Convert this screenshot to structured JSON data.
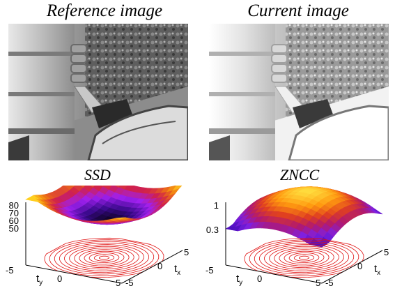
{
  "panels": {
    "reference": {
      "title": "Reference image"
    },
    "current": {
      "title": "Current image"
    }
  },
  "plots": {
    "ssd": {
      "title": "SSD",
      "z_ticks": [
        "80",
        "70",
        "60",
        "50"
      ],
      "x_ticks": [
        "-5",
        "0",
        "5"
      ],
      "y_ticks": [
        "5",
        "0",
        "-5"
      ],
      "x_label": "t",
      "x_label_sub": "y",
      "y_label": "t",
      "y_label_sub": "x",
      "colors": [
        "#000000",
        "#3a0a8c",
        "#a020f0",
        "#d0204a",
        "#f07a10",
        "#ffd020"
      ]
    },
    "zncc": {
      "title": "ZNCC",
      "z_ticks": [
        "1",
        "0.3"
      ],
      "x_ticks": [
        "-5",
        "0",
        "5"
      ],
      "y_ticks": [
        "5",
        "0",
        "-5"
      ],
      "x_label": "t",
      "x_label_sub": "y",
      "y_label": "t",
      "y_label_sub": "x",
      "colors": [
        "#ffe040",
        "#ff9a10",
        "#e04020",
        "#b01870",
        "#8020e0",
        "#5010c0"
      ]
    }
  },
  "chart_data": [
    {
      "type": "surface",
      "title": "SSD",
      "xlabel": "ty",
      "ylabel": "tx",
      "xlim": [
        -5,
        5
      ],
      "ylim": [
        -5,
        5
      ],
      "zticks": [
        50,
        60,
        70,
        80
      ],
      "description_values": {
        "minimum_at": [
          0,
          0
        ],
        "min_z": 45,
        "corner_z": 75
      }
    },
    {
      "type": "surface",
      "title": "ZNCC",
      "xlabel": "ty",
      "ylabel": "tx",
      "xlim": [
        -5,
        5
      ],
      "ylim": [
        -5,
        5
      ],
      "zticks": [
        0.3,
        1
      ],
      "description_values": {
        "maximum_at": [
          0,
          0
        ],
        "max_z": 1,
        "corner_z": 0.3
      }
    }
  ]
}
